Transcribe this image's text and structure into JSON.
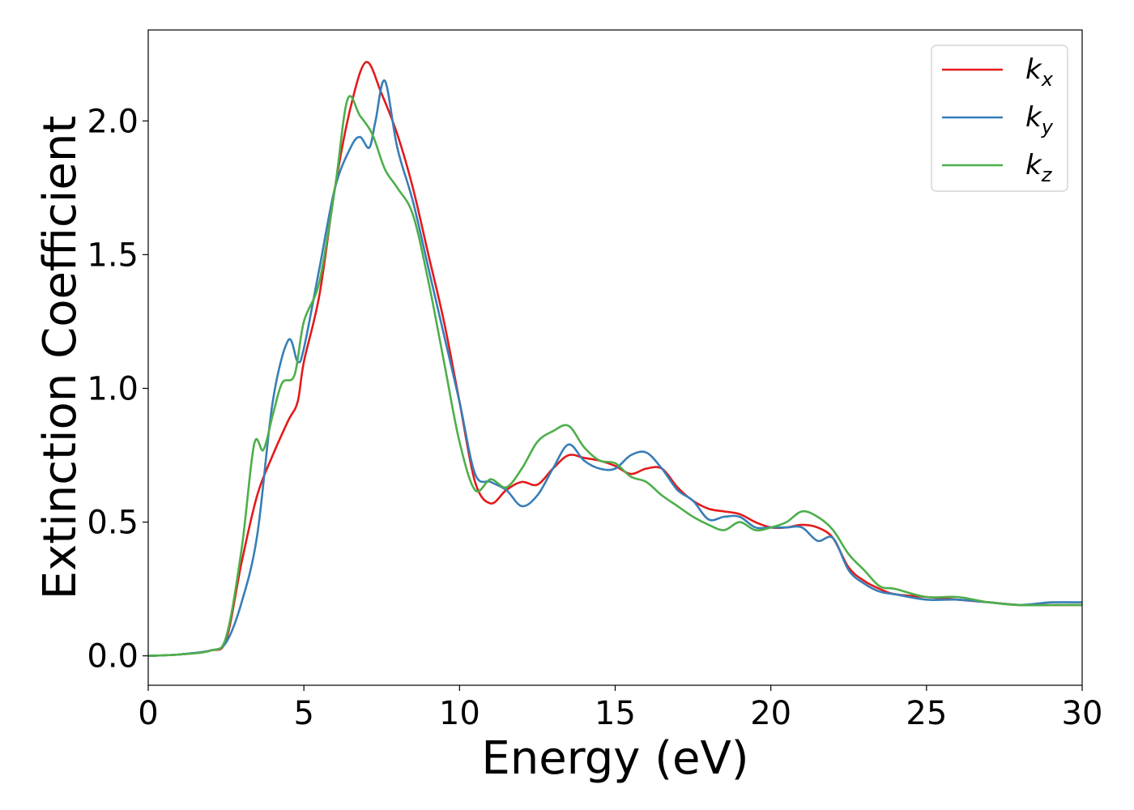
{
  "chart_data": {
    "type": "line",
    "title": "",
    "xlabel": "Energy (eV)",
    "ylabel": "Extinction Coefficient",
    "xlim": [
      0,
      30
    ],
    "ylim": [
      -0.11,
      2.34
    ],
    "xticks": [
      0,
      5,
      10,
      15,
      20,
      25,
      30
    ],
    "xtick_labels": [
      "0",
      "5",
      "10",
      "15",
      "20",
      "25",
      "30"
    ],
    "yticks": [
      0.0,
      0.5,
      1.0,
      1.5,
      2.0
    ],
    "ytick_labels": [
      "0.0",
      "0.5",
      "1.0",
      "1.5",
      "2.0"
    ],
    "grid": false,
    "legend_position": "top-right",
    "series": [
      {
        "name": "k",
        "subscript": "x",
        "color": "#e41a1c",
        "points": [
          [
            0,
            0.0
          ],
          [
            1,
            0.005
          ],
          [
            2,
            0.02
          ],
          [
            2.5,
            0.06
          ],
          [
            3,
            0.35
          ],
          [
            3.5,
            0.6
          ],
          [
            4,
            0.75
          ],
          [
            4.5,
            0.88
          ],
          [
            4.8,
            0.95
          ],
          [
            5,
            1.1
          ],
          [
            5.5,
            1.35
          ],
          [
            6,
            1.75
          ],
          [
            6.5,
            2.05
          ],
          [
            7,
            2.22
          ],
          [
            7.5,
            2.1
          ],
          [
            8,
            1.95
          ],
          [
            8.5,
            1.75
          ],
          [
            9,
            1.5
          ],
          [
            9.5,
            1.25
          ],
          [
            10,
            0.95
          ],
          [
            10.5,
            0.65
          ],
          [
            11,
            0.57
          ],
          [
            11.5,
            0.62
          ],
          [
            12,
            0.65
          ],
          [
            12.5,
            0.64
          ],
          [
            13,
            0.7
          ],
          [
            13.5,
            0.75
          ],
          [
            14,
            0.74
          ],
          [
            14.5,
            0.73
          ],
          [
            15,
            0.71
          ],
          [
            15.5,
            0.68
          ],
          [
            16,
            0.7
          ],
          [
            16.5,
            0.7
          ],
          [
            17,
            0.63
          ],
          [
            17.5,
            0.58
          ],
          [
            18,
            0.55
          ],
          [
            18.5,
            0.54
          ],
          [
            19,
            0.53
          ],
          [
            19.5,
            0.5
          ],
          [
            20,
            0.48
          ],
          [
            20.5,
            0.48
          ],
          [
            21,
            0.49
          ],
          [
            21.5,
            0.48
          ],
          [
            22,
            0.44
          ],
          [
            22.5,
            0.33
          ],
          [
            23,
            0.28
          ],
          [
            23.5,
            0.25
          ],
          [
            24,
            0.23
          ],
          [
            25,
            0.22
          ],
          [
            26,
            0.21
          ],
          [
            27,
            0.2
          ],
          [
            28,
            0.19
          ],
          [
            29,
            0.19
          ],
          [
            30,
            0.19
          ]
        ]
      },
      {
        "name": "k",
        "subscript": "y",
        "color": "#377eb8",
        "points": [
          [
            0,
            0.0
          ],
          [
            1,
            0.005
          ],
          [
            2,
            0.02
          ],
          [
            2.5,
            0.05
          ],
          [
            3,
            0.2
          ],
          [
            3.5,
            0.45
          ],
          [
            4,
            0.95
          ],
          [
            4.5,
            1.18
          ],
          [
            4.8,
            1.1
          ],
          [
            5,
            1.15
          ],
          [
            5.5,
            1.45
          ],
          [
            6,
            1.75
          ],
          [
            6.5,
            1.9
          ],
          [
            6.8,
            1.94
          ],
          [
            7.1,
            1.9
          ],
          [
            7.3,
            2.0
          ],
          [
            7.6,
            2.15
          ],
          [
            8,
            1.9
          ],
          [
            8.5,
            1.7
          ],
          [
            9,
            1.45
          ],
          [
            9.5,
            1.2
          ],
          [
            10,
            0.95
          ],
          [
            10.5,
            0.68
          ],
          [
            11,
            0.65
          ],
          [
            11.5,
            0.62
          ],
          [
            12,
            0.56
          ],
          [
            12.5,
            0.6
          ],
          [
            13,
            0.7
          ],
          [
            13.5,
            0.79
          ],
          [
            14,
            0.73
          ],
          [
            14.5,
            0.7
          ],
          [
            15,
            0.7
          ],
          [
            15.5,
            0.75
          ],
          [
            16,
            0.76
          ],
          [
            16.5,
            0.7
          ],
          [
            17,
            0.62
          ],
          [
            17.5,
            0.58
          ],
          [
            18,
            0.51
          ],
          [
            18.5,
            0.52
          ],
          [
            19,
            0.52
          ],
          [
            19.5,
            0.48
          ],
          [
            20,
            0.48
          ],
          [
            20.5,
            0.48
          ],
          [
            21,
            0.48
          ],
          [
            21.5,
            0.43
          ],
          [
            22,
            0.44
          ],
          [
            22.5,
            0.32
          ],
          [
            23,
            0.27
          ],
          [
            23.5,
            0.24
          ],
          [
            24,
            0.23
          ],
          [
            25,
            0.21
          ],
          [
            26,
            0.21
          ],
          [
            27,
            0.2
          ],
          [
            28,
            0.19
          ],
          [
            29,
            0.2
          ],
          [
            30,
            0.2
          ]
        ]
      },
      {
        "name": "k",
        "subscript": "z",
        "color": "#4daf4a",
        "points": [
          [
            0,
            0.0
          ],
          [
            1,
            0.005
          ],
          [
            2,
            0.02
          ],
          [
            2.5,
            0.07
          ],
          [
            3,
            0.4
          ],
          [
            3.4,
            0.79
          ],
          [
            3.7,
            0.77
          ],
          [
            4,
            0.9
          ],
          [
            4.3,
            1.02
          ],
          [
            4.7,
            1.05
          ],
          [
            5,
            1.25
          ],
          [
            5.5,
            1.4
          ],
          [
            6,
            1.75
          ],
          [
            6.4,
            2.08
          ],
          [
            6.8,
            2.02
          ],
          [
            7.2,
            1.95
          ],
          [
            7.6,
            1.82
          ],
          [
            8,
            1.75
          ],
          [
            8.5,
            1.65
          ],
          [
            9,
            1.4
          ],
          [
            9.5,
            1.1
          ],
          [
            10,
            0.8
          ],
          [
            10.5,
            0.62
          ],
          [
            11,
            0.66
          ],
          [
            11.5,
            0.63
          ],
          [
            12,
            0.7
          ],
          [
            12.5,
            0.8
          ],
          [
            13,
            0.84
          ],
          [
            13.5,
            0.86
          ],
          [
            14,
            0.78
          ],
          [
            14.5,
            0.73
          ],
          [
            15,
            0.72
          ],
          [
            15.5,
            0.67
          ],
          [
            16,
            0.65
          ],
          [
            16.5,
            0.6
          ],
          [
            17,
            0.56
          ],
          [
            17.5,
            0.52
          ],
          [
            18,
            0.49
          ],
          [
            18.5,
            0.47
          ],
          [
            19,
            0.5
          ],
          [
            19.5,
            0.47
          ],
          [
            20,
            0.48
          ],
          [
            20.5,
            0.5
          ],
          [
            21,
            0.54
          ],
          [
            21.5,
            0.52
          ],
          [
            22,
            0.47
          ],
          [
            22.5,
            0.38
          ],
          [
            23,
            0.32
          ],
          [
            23.5,
            0.26
          ],
          [
            24,
            0.25
          ],
          [
            25,
            0.22
          ],
          [
            26,
            0.22
          ],
          [
            27,
            0.2
          ],
          [
            28,
            0.19
          ],
          [
            29,
            0.19
          ],
          [
            30,
            0.19
          ]
        ]
      }
    ]
  }
}
